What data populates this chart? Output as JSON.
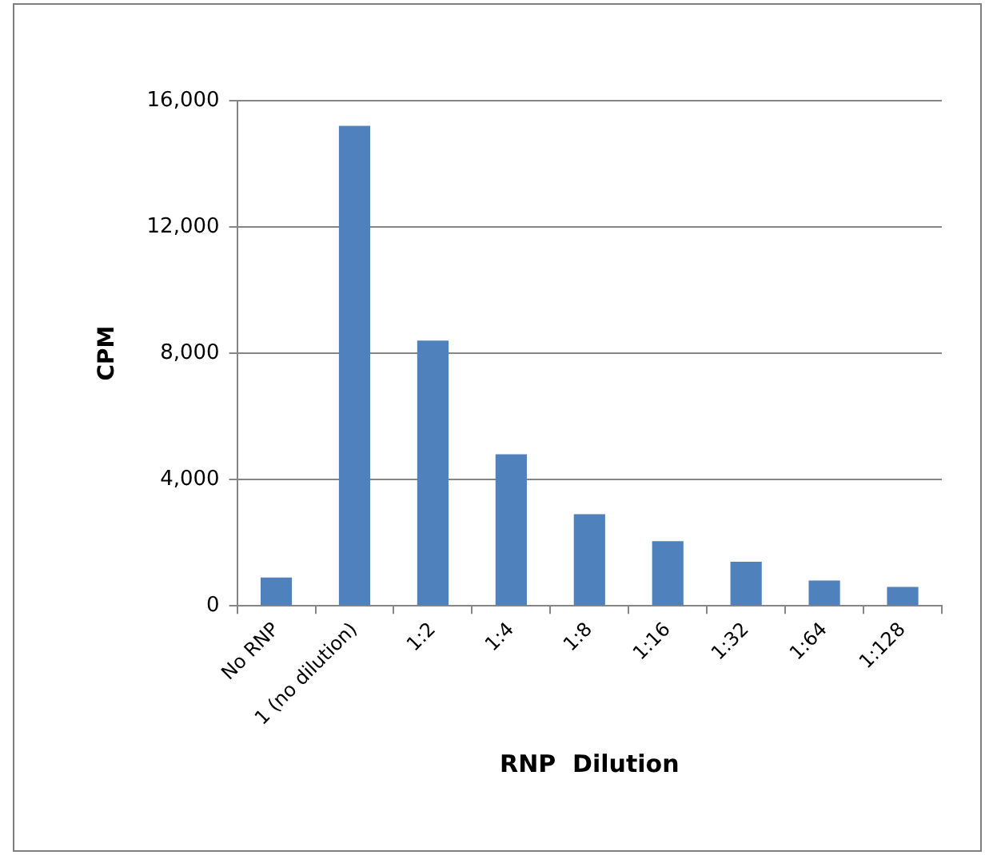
{
  "chart_data": {
    "type": "bar",
    "xlabel": "RNP  Dilution",
    "ylabel": "CPM",
    "categories": [
      "No RNP",
      "1 (no dilution)",
      "1:2",
      "1:4",
      "1:8",
      "1:16",
      "1:32",
      "1:64",
      "1:128"
    ],
    "values": [
      900,
      15200,
      8400,
      4800,
      2900,
      2050,
      1400,
      800,
      600
    ],
    "color": "#4f81bd",
    "ylim": [
      0,
      16000
    ],
    "yticks": [
      {
        "value": 0,
        "label": "0"
      },
      {
        "value": 4000,
        "label": "4,000"
      },
      {
        "value": 8000,
        "label": "8,000"
      },
      {
        "value": 12000,
        "label": "12,000"
      },
      {
        "value": 16000,
        "label": "16,000"
      }
    ],
    "grid": "y",
    "legend": false
  }
}
